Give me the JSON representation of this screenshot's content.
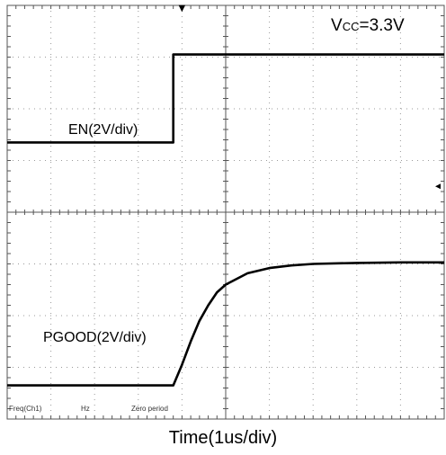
{
  "chart_data": {
    "type": "line",
    "title": "",
    "xlabel": "Time(1us/div)",
    "ylabel": "",
    "divisions": {
      "x": 10,
      "y": 8
    },
    "xlim": [
      -4.0,
      6.0
    ],
    "ylim": [
      0.0,
      8.0
    ],
    "grid": true,
    "grid_style": "dotted",
    "trigger_marker": {
      "x": 0.0,
      "symbol": "▼"
    },
    "condition": {
      "prefix": "V",
      "subscript": "CC",
      "value": "=3.3V"
    },
    "series": [
      {
        "name": "EN(2V/div)",
        "color": "#000000",
        "x": [
          -4.0,
          -3.0,
          -2.0,
          -1.0,
          -0.2,
          -0.2,
          0.5,
          1.0,
          2.0,
          3.0,
          4.0,
          5.0,
          6.0
        ],
        "y": [
          5.35,
          5.35,
          5.35,
          5.35,
          5.35,
          7.05,
          7.05,
          7.05,
          7.05,
          7.05,
          7.05,
          7.05,
          7.05
        ]
      },
      {
        "name": "PGOOD(2V/div)",
        "color": "#000000",
        "x": [
          -4.0,
          -3.0,
          -2.0,
          -1.0,
          -0.2,
          0.0,
          0.2,
          0.4,
          0.6,
          0.8,
          1.0,
          1.5,
          2.0,
          2.5,
          3.0,
          4.0,
          5.0,
          6.0
        ],
        "y": [
          0.65,
          0.65,
          0.65,
          0.65,
          0.65,
          1.05,
          1.5,
          1.9,
          2.2,
          2.45,
          2.6,
          2.82,
          2.92,
          2.97,
          3.0,
          3.02,
          3.03,
          3.03
        ]
      }
    ],
    "status_bar": [
      "Freq(Ch1)",
      "Hz",
      "Zero period"
    ]
  }
}
